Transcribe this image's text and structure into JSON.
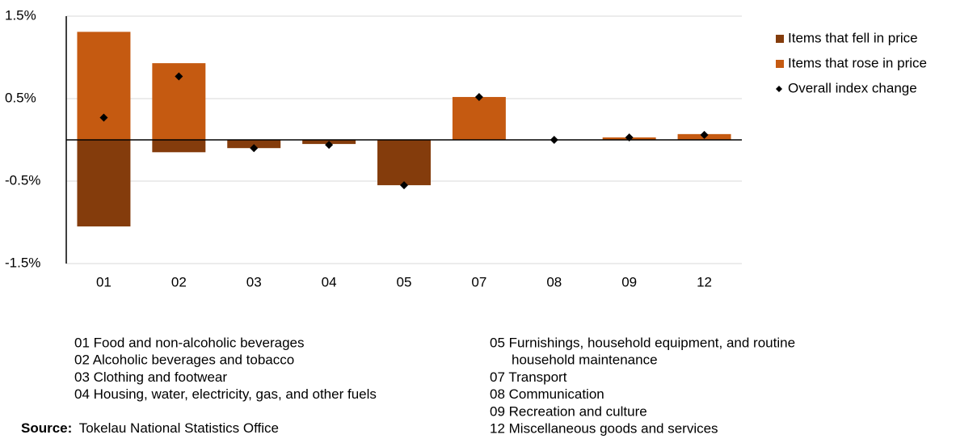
{
  "chart_data": {
    "type": "bar",
    "stacked": true,
    "categories": [
      "01",
      "02",
      "03",
      "04",
      "05",
      "07",
      "08",
      "09",
      "12"
    ],
    "series": [
      {
        "name": "Items that fell in price",
        "color": "#843C0C",
        "marker": "square",
        "values": [
          -1.05,
          -0.15,
          -0.1,
          -0.05,
          -0.55,
          0,
          0,
          0,
          0
        ]
      },
      {
        "name": "Items that rose in price",
        "color": "#C55A11",
        "marker": "square",
        "values": [
          1.31,
          0.93,
          0,
          0,
          0,
          0.52,
          0,
          0.03,
          0.07
        ]
      },
      {
        "name": "Overall index change",
        "color": "#000000",
        "marker": "diamond",
        "values": [
          0.27,
          0.77,
          -0.1,
          -0.06,
          -0.55,
          0.52,
          0,
          0.03,
          0.06
        ]
      }
    ],
    "ylim": [
      -1.5,
      1.5
    ],
    "yticks": [
      {
        "value": -1.5,
        "label": "-1.5%"
      },
      {
        "value": -0.5,
        "label": "-0.5%"
      },
      {
        "value": 0.5,
        "label": "0.5%"
      },
      {
        "value": 1.5,
        "label": "1.5%"
      }
    ],
    "grid": true,
    "legend": "right",
    "notes": [
      [
        "01 Food and non-alcoholic beverages",
        "02 Alcoholic beverages and tobacco",
        "03 Clothing and footwear",
        "04 Housing, water, electricity, gas, and other fuels"
      ],
      [
        "05 Furnishings, household equipment, and routine",
        "household maintenance",
        "07 Transport",
        "08 Communication",
        "09 Recreation and culture",
        "12 Miscellaneous goods and services"
      ]
    ],
    "source_label": "Source:",
    "source": "Tokelau National Statistics Office"
  }
}
